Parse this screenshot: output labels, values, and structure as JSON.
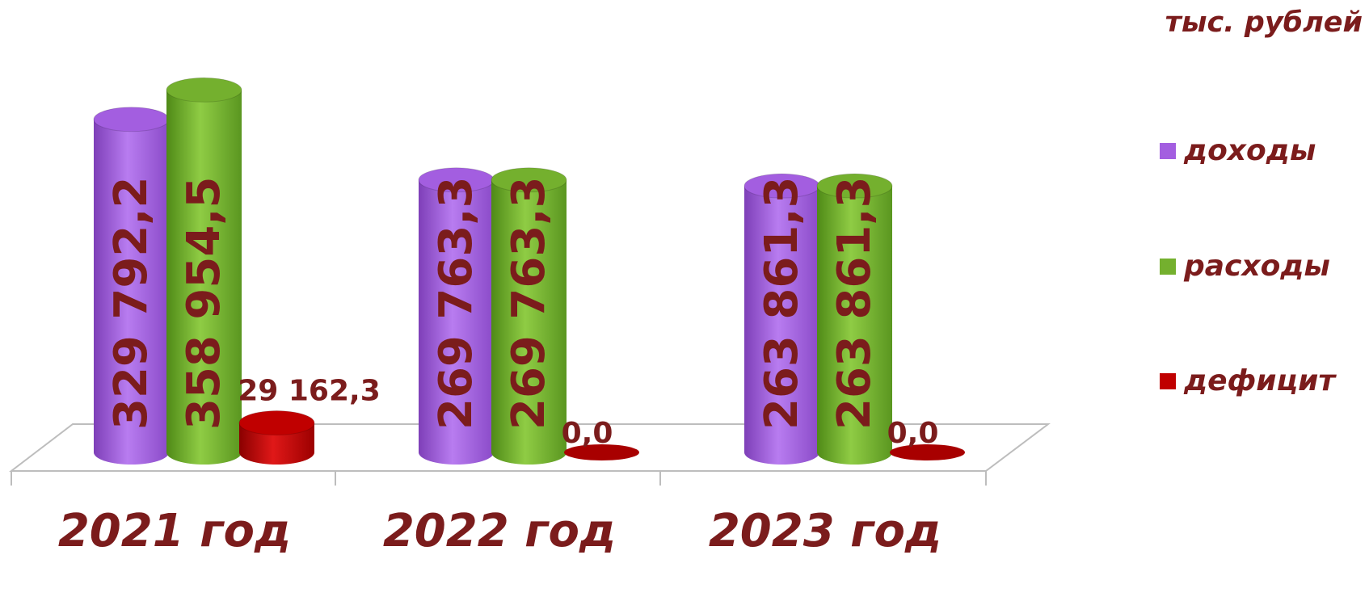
{
  "chart_data": {
    "type": "bar",
    "categories": [
      "2021 год",
      "2022 год",
      "2023 год"
    ],
    "unit_label": "тыс. рублей",
    "series": [
      {
        "name": "доходы",
        "values": [
          329792.2,
          269763.3,
          263861.3
        ],
        "labels": [
          "329 792,2",
          "269 763,3",
          "263 861,3"
        ],
        "color": "#a35ee0"
      },
      {
        "name": "расходы",
        "values": [
          358954.5,
          269763.3,
          263861.3
        ],
        "labels": [
          "358 954,5",
          "269 763,3",
          "263 861,3"
        ],
        "color": "#74b02e"
      },
      {
        "name": "дефицит",
        "values": [
          29162.3,
          0.0,
          0.0
        ],
        "labels": [
          "29 162,3",
          "0,0",
          "0,0"
        ],
        "color": "#c00000"
      }
    ],
    "label_color": "#7b1c1c",
    "legend_position": "right",
    "grid": false
  }
}
